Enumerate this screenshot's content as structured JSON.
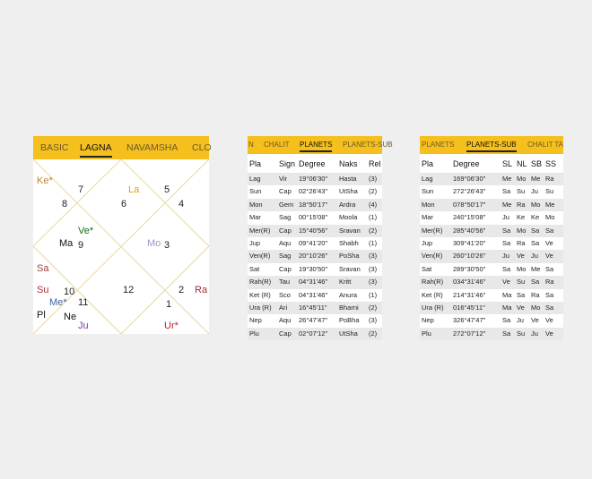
{
  "panel1": {
    "tabs": [
      "BASIC",
      "LAGNA",
      "NAVAMSHA",
      "CLO"
    ],
    "active_tab": 1,
    "chart": [
      {
        "t": "Ke*",
        "c": "#b8863a"
      },
      {
        "t": "7",
        "c": "#222"
      },
      {
        "t": "8",
        "c": "#222"
      },
      {
        "t": "La",
        "c": "#d9a21c"
      },
      {
        "t": "6",
        "c": "#222"
      },
      {
        "t": "5",
        "c": "#222"
      },
      {
        "t": "4",
        "c": "#222"
      },
      {
        "t": "Ve*",
        "c": "#1a6b1a"
      },
      {
        "t": "Ma",
        "c": "#111"
      },
      {
        "t": "9",
        "c": "#222"
      },
      {
        "t": "Mo",
        "c": "#9a9ac8"
      },
      {
        "t": "3",
        "c": "#222"
      },
      {
        "t": "Sa",
        "c": "#a04040"
      },
      {
        "t": "Su",
        "c": "#b03030"
      },
      {
        "t": "10",
        "c": "#222"
      },
      {
        "t": "12",
        "c": "#222"
      },
      {
        "t": "2",
        "c": "#222"
      },
      {
        "t": "Ra",
        "c": "#a03030"
      },
      {
        "t": "Me*",
        "c": "#4060a0"
      },
      {
        "t": "11",
        "c": "#222"
      },
      {
        "t": "1",
        "c": "#222"
      },
      {
        "t": "Pl",
        "c": "#111"
      },
      {
        "t": "Ne",
        "c": "#111"
      },
      {
        "t": "Ju",
        "c": "#8040a0"
      },
      {
        "t": "Ur*",
        "c": "#c02020"
      }
    ]
  },
  "panel2": {
    "tabs": [
      "N",
      "CHALIT",
      "PLANETS",
      "PLANETS-SUB"
    ],
    "active_tab": 2,
    "headers": [
      "Pla",
      "Sign",
      "Degree",
      "Naks",
      "Rel"
    ],
    "rows": [
      [
        "Lag",
        "Vir",
        "19°06'30\"",
        "Hasta",
        "(3)"
      ],
      [
        "Sun",
        "Cap",
        "02°26'43\"",
        "UtSha",
        "(2)"
      ],
      [
        "Mon",
        "Gem",
        "18°50'17\"",
        "Ardra",
        "(4)"
      ],
      [
        "Mar",
        "Sag",
        "00°15'08\"",
        "Moola",
        "(1)"
      ],
      [
        "Mer(R)",
        "Cap",
        "15°40'56\"",
        "Sravan",
        "(2)"
      ],
      [
        "Jup",
        "Aqu",
        "09°41'20\"",
        "Shabh",
        "(1)"
      ],
      [
        "Ven(R)",
        "Sag",
        "20°10'26\"",
        "PoSha",
        "(3)"
      ],
      [
        "Sat",
        "Cap",
        "19°30'50\"",
        "Sravan",
        "(3)"
      ],
      [
        "Rah(R)",
        "Tau",
        "04°31'46\"",
        "Kritt",
        "(3)"
      ],
      [
        "Ket (R)",
        "Sco",
        "04°31'46\"",
        "Anura",
        "(1)"
      ],
      [
        "Ura (R)",
        "Ari",
        "16°45'11\"",
        "Bharni",
        "(2)"
      ],
      [
        "Nep",
        "Aqu",
        "26°47'47\"",
        "PoBha",
        "(3)"
      ],
      [
        "Plu",
        "Cap",
        "02°07'12\"",
        "UtSha",
        "(2)"
      ]
    ]
  },
  "panel3": {
    "tabs": [
      "PLANETS",
      "PLANETS-SUB",
      "CHALIT TA"
    ],
    "active_tab": 1,
    "headers": [
      "Pla",
      "Degree",
      "SL",
      "NL",
      "SB",
      "SS"
    ],
    "rows": [
      [
        "Lag",
        "169°06'30\"",
        "Me",
        "Mo",
        "Me",
        "Ra"
      ],
      [
        "Sun",
        "272°26'43\"",
        "Sa",
        "Su",
        "Ju",
        "Su"
      ],
      [
        "Mon",
        "078°50'17\"",
        "Me",
        "Ra",
        "Mo",
        "Me"
      ],
      [
        "Mar",
        "240°15'08\"",
        "Ju",
        "Ke",
        "Ke",
        "Mo"
      ],
      [
        "Mer(R)",
        "285°40'56\"",
        "Sa",
        "Mo",
        "Sa",
        "Sa"
      ],
      [
        "Jup",
        "309°41'20\"",
        "Sa",
        "Ra",
        "Sa",
        "Ve"
      ],
      [
        "Ven(R)",
        "260°10'26\"",
        "Ju",
        "Ve",
        "Ju",
        "Ve"
      ],
      [
        "Sat",
        "289°30'50\"",
        "Sa",
        "Mo",
        "Me",
        "Sa"
      ],
      [
        "Rah(R)",
        "034°31'46\"",
        "Ve",
        "Su",
        "Sa",
        "Ra"
      ],
      [
        "Ket (R)",
        "214°31'46\"",
        "Ma",
        "Sa",
        "Ra",
        "Sa"
      ],
      [
        "Ura (R)",
        "016°45'11\"",
        "Ma",
        "Ve",
        "Mo",
        "Sa"
      ],
      [
        "Nep",
        "326°47'47\"",
        "Sa",
        "Ju",
        "Ve",
        "Ve"
      ],
      [
        "Plu",
        "272°07'12\"",
        "Sa",
        "Su",
        "Ju",
        "Ve"
      ]
    ]
  }
}
